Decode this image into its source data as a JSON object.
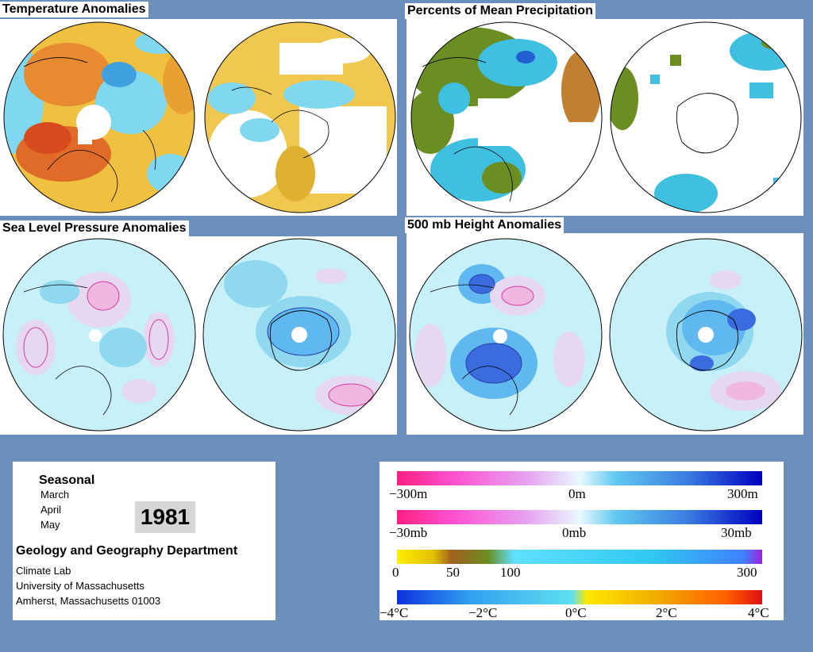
{
  "panels": {
    "temperature": {
      "title": "Temperature Anomalies"
    },
    "precipitation": {
      "title": "Percents of Mean Precipitation"
    },
    "slp": {
      "title": "Sea Level Pressure Anomalies"
    },
    "height500": {
      "title": "500 mb Height Anomalies"
    }
  },
  "info": {
    "season": "Seasonal",
    "months": [
      "March",
      "April",
      "May"
    ],
    "year": "1981",
    "department": "Geology and Geography Department",
    "lab": "Climate Lab",
    "university": "University of Massachusetts",
    "address": "Amherst, Massachusetts 01003"
  },
  "legend": {
    "height_scale": {
      "min": "−300m",
      "mid": "0m",
      "max": "300m"
    },
    "pressure_scale": {
      "min": "−30mb",
      "mid": "0mb",
      "max": "30mb"
    },
    "precip_scale": {
      "t0": "0",
      "t50": "50",
      "t100": "100",
      "t300": "300"
    },
    "temp_scale": {
      "t1": "−4°C",
      "t2": "−2°C",
      "t3": "0°C",
      "t4": "2°C",
      "t5": "4°C"
    }
  },
  "colors": {
    "background": "#6c8fbd",
    "warm": "#e8a030",
    "hot": "#e05a20",
    "cool": "#7fd8f0",
    "precip_low": "#6b8e23",
    "precip_high": "#2060d0",
    "pressure_high": "#d63aa0",
    "pressure_low": "#2a3ea8"
  }
}
